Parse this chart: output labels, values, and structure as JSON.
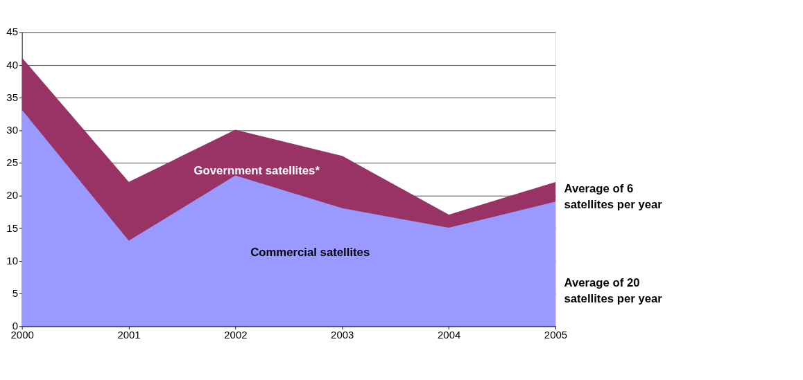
{
  "chart_data": {
    "type": "area",
    "stacked": true,
    "x": [
      2000,
      2001,
      2002,
      2003,
      2004,
      2005
    ],
    "series": [
      {
        "name": "Commercial satellites",
        "color": "#9999ff",
        "values": [
          33,
          13,
          23,
          18,
          15,
          19
        ]
      },
      {
        "name": "Government satellites*",
        "color": "#993366",
        "values": [
          8,
          9,
          7,
          8,
          2,
          3
        ]
      }
    ],
    "xlim": [
      2000,
      2005
    ],
    "xticks": [
      2000,
      2001,
      2002,
      2003,
      2004,
      2005
    ],
    "ylim": [
      0,
      45
    ],
    "yticks": [
      0,
      5,
      10,
      15,
      20,
      25,
      30,
      35,
      40,
      45
    ],
    "grid": "y",
    "legend": false,
    "annotations": [
      "Average of 6\nsatellites per year",
      "Average of 20\nsatellites per year"
    ]
  }
}
